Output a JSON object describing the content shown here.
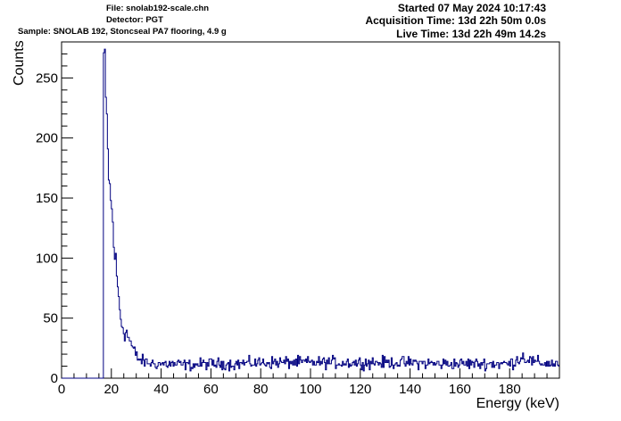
{
  "header": {
    "file": "File: snolab192-scale.chn",
    "detector": "Detector: PGT",
    "sample": "Sample: SNOLAB 192, Stoncseal PA7 flooring, 4.9 g",
    "started": "Started 07 May 2024 10:17:43",
    "acquisition_time": "Acquisition Time: 13d 22h 50m 0.0s",
    "live_time": "Live Time: 13d 22h 49m 14.2s"
  },
  "chart_data": {
    "type": "line",
    "style": "histogram-step",
    "xlabel": "Energy (keV)",
    "ylabel": "Counts",
    "xlim": [
      0,
      200
    ],
    "ylim": [
      0,
      280
    ],
    "x_ticks": [
      0,
      20,
      40,
      60,
      80,
      100,
      120,
      140,
      160,
      180
    ],
    "y_ticks": [
      0,
      50,
      100,
      150,
      200,
      250
    ],
    "bin_width_keV": 0.4,
    "threshold_keV": 16.8,
    "line_color": "#000080",
    "grid": false,
    "legend": "none",
    "series": [
      {
        "x": [
          16.8,
          17.2,
          17.6,
          18.0,
          18.4,
          18.8,
          19.4,
          20.0,
          20.6,
          21.2,
          21.8,
          22.4,
          23.0,
          23.6,
          24.2,
          25.0,
          26.0,
          27.0,
          28.0,
          29.0,
          30.0,
          31.0,
          32.0,
          34.0,
          36.0,
          40.0,
          50.0,
          60.0,
          70.0,
          80.0,
          90.0,
          100.0,
          110.0,
          120.0,
          130.0,
          140.0,
          150.0,
          160.0,
          170.0,
          180.0,
          185.0,
          190.0,
          199.6
        ],
        "y": [
          269,
          255,
          228,
          212,
          190,
          170,
          150,
          140,
          120,
          103,
          90,
          74,
          62,
          50,
          44,
          40,
          37,
          33,
          27,
          22,
          18,
          16,
          14,
          13,
          12,
          12,
          11,
          12,
          12,
          13,
          13,
          13,
          13,
          13,
          13,
          13,
          12,
          12,
          12,
          12,
          18,
          13,
          12
        ]
      }
    ]
  }
}
